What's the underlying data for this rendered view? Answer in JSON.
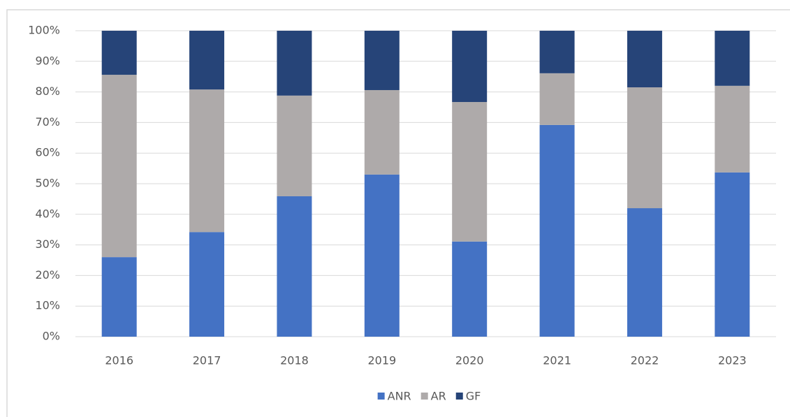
{
  "chart_data": {
    "type": "stacked_bar",
    "categories": [
      "2016",
      "2017",
      "2018",
      "2019",
      "2020",
      "2021",
      "2022",
      "2023"
    ],
    "series": [
      {
        "name": "ANR",
        "color": "#4472c4",
        "values": [
          26.0,
          34.2,
          45.9,
          53.0,
          31.1,
          69.2,
          42.0,
          53.7
        ]
      },
      {
        "name": "AR",
        "color": "#aeaaaa",
        "values": [
          59.6,
          46.6,
          32.9,
          27.6,
          45.6,
          16.9,
          39.5,
          28.3
        ]
      },
      {
        "name": "GF",
        "color": "#264478",
        "values": [
          14.4,
          19.2,
          21.2,
          19.4,
          23.3,
          13.9,
          18.5,
          18.0
        ]
      }
    ],
    "ylim": [
      0,
      100
    ],
    "yticks": [
      {
        "value": 0,
        "label": "0%"
      },
      {
        "value": 10,
        "label": "10%"
      },
      {
        "value": 20,
        "label": "20%"
      },
      {
        "value": 30,
        "label": "30%"
      },
      {
        "value": 40,
        "label": "40%"
      },
      {
        "value": 50,
        "label": "50%"
      },
      {
        "value": 60,
        "label": "60%"
      },
      {
        "value": 70,
        "label": "70%"
      },
      {
        "value": 80,
        "label": "80%"
      },
      {
        "value": 90,
        "label": "90%"
      },
      {
        "value": 100,
        "label": "100%"
      }
    ],
    "grid": true,
    "legend": "bottom"
  }
}
